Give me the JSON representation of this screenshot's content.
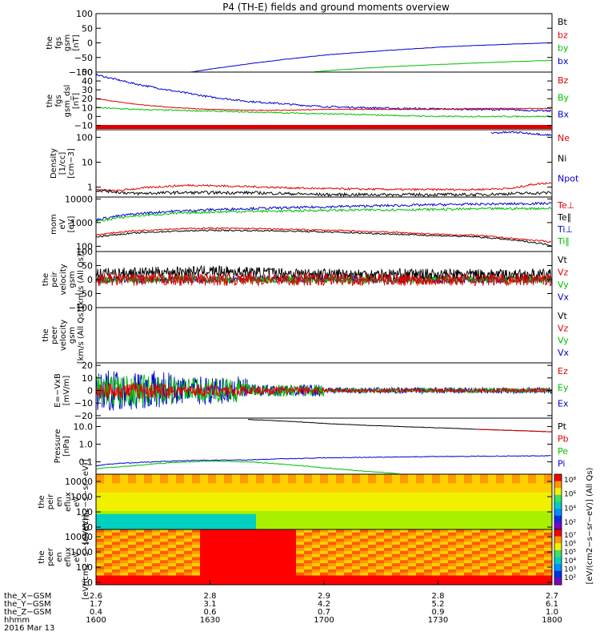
{
  "title": "P4 (TH-E) fields and ground moments overview",
  "colors": {
    "black": "#000000",
    "red": "#e00000",
    "green": "#00c000",
    "blue": "#0000d0",
    "white": "#ffffff"
  },
  "chart_data": [
    {
      "id": "p1",
      "type": "line",
      "ylabel": [
        "the",
        "fgs",
        "gsm",
        "[nT]"
      ],
      "yscale": "linear",
      "ylim": [
        -100,
        100
      ],
      "ticks": [
        {
          "v": 100,
          "t": "100"
        },
        {
          "v": 50,
          "t": "50"
        },
        {
          "v": 0,
          "t": "0"
        },
        {
          "v": -50,
          "t": "−50"
        },
        {
          "v": -100,
          "t": "−100"
        }
      ],
      "legend": [
        {
          "name": "Bt",
          "color": "black"
        },
        {
          "name": "bz",
          "color": "red"
        },
        {
          "name": "by",
          "color": "green"
        },
        {
          "name": "bx",
          "color": "blue"
        }
      ],
      "series": [
        {
          "name": "bx",
          "color": "blue",
          "x": [
            1625,
            1630,
            1640,
            1650,
            1700,
            1710,
            1720,
            1730,
            1740,
            1750,
            1800
          ],
          "y": [
            -100,
            -90,
            -72,
            -56,
            -42,
            -32,
            -23,
            -15,
            -9,
            -4,
            0
          ],
          "noise": 0.6
        },
        {
          "name": "by",
          "color": "green",
          "x": [
            1657,
            1700,
            1710,
            1720,
            1730,
            1740,
            1750,
            1800
          ],
          "y": [
            -100,
            -96,
            -87,
            -80,
            -74,
            -69,
            -64,
            -60
          ],
          "noise": 0.6
        },
        {
          "name": "bz",
          "color": "red",
          "x": [
            1757,
            1800
          ],
          "y": [
            100,
            100
          ],
          "noise": 0.5
        }
      ]
    },
    {
      "id": "p2",
      "type": "line",
      "ylabel": [
        "the",
        "fgs",
        "gsm_dsl",
        "[nT]"
      ],
      "yscale": "linear",
      "ylim": [
        -15,
        50
      ],
      "ticks": [
        {
          "v": 50,
          "t": "50"
        },
        {
          "v": 40,
          "t": "40"
        },
        {
          "v": 30,
          "t": "30"
        },
        {
          "v": 20,
          "t": "20"
        },
        {
          "v": 10,
          "t": "10"
        },
        {
          "v": 0,
          "t": "0"
        },
        {
          "v": -10,
          "t": "−10"
        }
      ],
      "legend": [
        {
          "name": "Bz",
          "color": "red"
        },
        {
          "name": "By",
          "color": "green"
        },
        {
          "name": "Bx",
          "color": "blue"
        }
      ],
      "series": [
        {
          "name": "Bx",
          "color": "blue",
          "x": [
            1600,
            1610,
            1620,
            1630,
            1640,
            1650,
            1700,
            1710,
            1720,
            1730,
            1740,
            1750,
            1800
          ],
          "y": [
            47,
            37,
            29,
            22,
            17,
            14,
            11,
            10,
            9,
            8.5,
            8,
            7.5,
            6
          ],
          "noise": 1.0
        },
        {
          "name": "Bz",
          "color": "red",
          "x": [
            1600,
            1610,
            1620,
            1630,
            1640,
            1650,
            1700,
            1710,
            1720,
            1730,
            1740,
            1750,
            1800
          ],
          "y": [
            20,
            14,
            10,
            8,
            7,
            7,
            8,
            8,
            8,
            8,
            9,
            9,
            9
          ],
          "noise": 0.4
        },
        {
          "name": "By",
          "color": "green",
          "x": [
            1600,
            1610,
            1620,
            1630,
            1640,
            1650,
            1700,
            1710,
            1720,
            1730,
            1740,
            1750,
            1800
          ],
          "y": [
            10,
            8,
            7,
            6,
            5,
            4,
            3,
            2,
            1,
            0,
            0,
            0,
            0
          ],
          "noise": 0.7
        }
      ]
    },
    {
      "id": "p3",
      "type": "line",
      "ylabel": [
        "Density",
        "[1/cc]",
        "[cm−3]"
      ],
      "yscale": "log",
      "ylim": [
        0.4,
        200
      ],
      "ticks": [
        {
          "v": 100,
          "t": "100"
        },
        {
          "v": 10,
          "t": "10"
        },
        {
          "v": 1,
          "t": "1"
        }
      ],
      "legend": [
        {
          "name": "Ne",
          "color": "red"
        },
        {
          "name": "Ni",
          "color": "black"
        },
        {
          "name": "Npot",
          "color": "blue"
        }
      ],
      "series": [
        {
          "name": "Ne",
          "color": "red",
          "x": [
            1600,
            1605,
            1615,
            1625,
            1635,
            1645,
            1655,
            1705,
            1720,
            1740,
            1750,
            1755,
            1800
          ],
          "y": [
            0.8,
            0.7,
            1.0,
            1.2,
            1.1,
            1.0,
            0.9,
            0.85,
            0.8,
            0.8,
            0.9,
            1.3,
            1.5
          ],
          "noise": 0.04
        },
        {
          "name": "Ni",
          "color": "black",
          "x": [
            1600,
            1610,
            1620,
            1630,
            1640,
            1650,
            1700,
            1720,
            1740,
            1750,
            1800
          ],
          "y": [
            0.75,
            0.55,
            0.6,
            0.6,
            0.6,
            0.55,
            0.5,
            0.5,
            0.5,
            0.55,
            0.6
          ],
          "noise": 0.06
        },
        {
          "name": "Npot",
          "color": "blue",
          "x": [
            1744,
            1750,
            1755,
            1760,
            1800
          ],
          "y": [
            150,
            160,
            140,
            120,
            110
          ],
          "noise": 0.04
        }
      ]
    },
    {
      "id": "p4",
      "type": "line",
      "ylabel": [
        "mom",
        "eV",
        "[eV]"
      ],
      "yscale": "log",
      "ylim": [
        60,
        12000
      ],
      "ticks": [
        {
          "v": 10000,
          "t": "10000"
        },
        {
          "v": 1000,
          "t": "1000"
        },
        {
          "v": 100,
          "t": "100"
        }
      ],
      "legend": [
        {
          "name": "Te⊥",
          "color": "red"
        },
        {
          "name": "Te∥",
          "color": "black"
        },
        {
          "name": "Ti⊥",
          "color": "blue"
        },
        {
          "name": "Ti∥",
          "color": "green"
        }
      ],
      "series": [
        {
          "name": "Ti⊥",
          "color": "blue",
          "x": [
            1600,
            1610,
            1620,
            1630,
            1640,
            1650,
            1700,
            1710,
            1720,
            1730,
            1740,
            1750,
            1800
          ],
          "y": [
            1300,
            2300,
            3000,
            3500,
            3900,
            4200,
            4600,
            5000,
            5300,
            5700,
            6000,
            6200,
            6500
          ],
          "noise": 0.05
        },
        {
          "name": "Ti∥",
          "color": "green",
          "x": [
            1600,
            1610,
            1620,
            1630,
            1640,
            1650,
            1700,
            1710,
            1720,
            1730,
            1740,
            1750,
            1800
          ],
          "y": [
            1100,
            1900,
            2400,
            2800,
            3000,
            3100,
            3300,
            3400,
            3500,
            3600,
            3800,
            3900,
            4000
          ],
          "noise": 0.05
        },
        {
          "name": "Te⊥",
          "color": "red",
          "x": [
            1600,
            1610,
            1620,
            1630,
            1640,
            1650,
            1700,
            1710,
            1720,
            1730,
            1740,
            1750,
            1800
          ],
          "y": [
            300,
            450,
            540,
            580,
            560,
            520,
            480,
            430,
            380,
            320,
            290,
            210,
            150
          ],
          "noise": 0.03
        },
        {
          "name": "Te∥",
          "color": "black",
          "x": [
            1600,
            1610,
            1620,
            1630,
            1640,
            1650,
            1700,
            1710,
            1720,
            1730,
            1740,
            1750,
            1800
          ],
          "y": [
            250,
            360,
            430,
            470,
            460,
            440,
            400,
            360,
            320,
            280,
            250,
            180,
            110
          ],
          "noise": 0.03
        }
      ]
    },
    {
      "id": "p5",
      "type": "line",
      "ylabel": [
        "the",
        "peir",
        "velocity",
        "gsm",
        "[km/s (All Qs)]"
      ],
      "yscale": "linear",
      "ylim": [
        -100,
        100
      ],
      "ticks": [
        {
          "v": 100,
          "t": "100"
        },
        {
          "v": 50,
          "t": "50"
        },
        {
          "v": 0,
          "t": "0"
        },
        {
          "v": -50,
          "t": "−50"
        },
        {
          "v": -100,
          "t": "−100"
        }
      ],
      "legend": [
        {
          "name": "Vt",
          "color": "black"
        },
        {
          "name": "Vz",
          "color": "red"
        },
        {
          "name": "Vy",
          "color": "green"
        },
        {
          "name": "Vx",
          "color": "blue"
        }
      ],
      "series": [
        {
          "name": "Vx",
          "color": "blue",
          "x": [
            1600,
            1800
          ],
          "y": [
            0,
            0
          ],
          "noise": 8,
          "dense": true
        },
        {
          "name": "Vy",
          "color": "green",
          "x": [
            1600,
            1800
          ],
          "y": [
            0,
            0
          ],
          "noise": 9,
          "dense": true
        },
        {
          "name": "Vt",
          "color": "black",
          "x": [
            1600,
            1630,
            1700,
            1800
          ],
          "y": [
            22,
            30,
            20,
            18
          ],
          "noise": 12,
          "dense": true
        },
        {
          "name": "Vz",
          "color": "red",
          "x": [
            1600,
            1800
          ],
          "y": [
            0,
            0
          ],
          "noise": 14,
          "dense": true
        }
      ]
    },
    {
      "id": "p6",
      "type": "line",
      "ylabel": [
        "the",
        "peer",
        "velocity",
        "gsm",
        "[km/s (All Qs)]"
      ],
      "yscale": "linear",
      "ylim": [
        -100,
        100
      ],
      "ticks": [],
      "legend": [
        {
          "name": "Vt",
          "color": "black"
        },
        {
          "name": "Vz",
          "color": "red"
        },
        {
          "name": "Vy",
          "color": "green"
        },
        {
          "name": "Vx",
          "color": "blue"
        }
      ],
      "series": []
    },
    {
      "id": "p7",
      "type": "line",
      "ylabel": [
        "E=−VxB",
        "[mV/m]"
      ],
      "yscale": "linear",
      "ylim": [
        -22,
        22
      ],
      "ticks": [
        {
          "v": 20,
          "t": "20"
        },
        {
          "v": 10,
          "t": "10"
        },
        {
          "v": 0,
          "t": "0"
        },
        {
          "v": -10,
          "t": "−10"
        },
        {
          "v": -20,
          "t": "−20"
        }
      ],
      "legend": [
        {
          "name": "Ez",
          "color": "red"
        },
        {
          "name": "Ey",
          "color": "green"
        },
        {
          "name": "Ex",
          "color": "blue"
        }
      ],
      "series": [
        {
          "name": "Ex",
          "color": "blue",
          "x": [
            1600,
            1620,
            1640,
            1700,
            1800
          ],
          "y": [
            0,
            0,
            0,
            0,
            0
          ],
          "noise": [
            10,
            7,
            3,
            1.5,
            1
          ],
          "dense": true
        },
        {
          "name": "Ey",
          "color": "green",
          "x": [
            1600,
            1620,
            1640,
            1700,
            1800
          ],
          "y": [
            0,
            0,
            0,
            0,
            0
          ],
          "noise": [
            8,
            6,
            3,
            1.2,
            0.8
          ],
          "dense": true
        },
        {
          "name": "Ez",
          "color": "red",
          "x": [
            1600,
            1620,
            1640,
            1700,
            1800
          ],
          "y": [
            0,
            0,
            0,
            0,
            0
          ],
          "noise": [
            4,
            3,
            2,
            1,
            0.7
          ],
          "dense": true
        }
      ]
    },
    {
      "id": "p8",
      "type": "line",
      "ylabel": [
        "Pressure",
        "[nPa]"
      ],
      "yscale": "log",
      "ylim": [
        0.02,
        30
      ],
      "ticks": [
        {
          "v": 10,
          "t": "10.0"
        },
        {
          "v": 1,
          "t": "1.0"
        },
        {
          "v": 0.1,
          "t": "0.1"
        }
      ],
      "legend": [
        {
          "name": "Pt",
          "color": "black"
        },
        {
          "name": "Pb",
          "color": "red"
        },
        {
          "name": "Pe",
          "color": "green"
        },
        {
          "name": "Pi",
          "color": "blue"
        }
      ],
      "series": [
        {
          "name": "Pt",
          "color": "black",
          "x": [
            1640,
            1650,
            1700,
            1710,
            1720,
            1730,
            1740,
            1750,
            1800
          ],
          "y": [
            25,
            20,
            15,
            12,
            10,
            8.5,
            7,
            6,
            5
          ],
          "noise": 0.01
        },
        {
          "name": "Pb",
          "color": "red",
          "x": [
            1740,
            1750,
            1800
          ],
          "y": [
            7,
            6,
            5
          ],
          "noise": 0.01
        },
        {
          "name": "Pi",
          "color": "blue",
          "x": [
            1600,
            1605,
            1615,
            1625,
            1640,
            1700,
            1730,
            1800
          ],
          "y": [
            0.06,
            0.08,
            0.1,
            0.12,
            0.13,
            0.17,
            0.2,
            0.22
          ],
          "noise": 0.02
        },
        {
          "name": "Pe",
          "color": "green",
          "x": [
            1600,
            1610,
            1620,
            1630,
            1640,
            1650,
            1700,
            1710,
            1720
          ],
          "y": [
            0.04,
            0.06,
            0.09,
            0.11,
            0.1,
            0.07,
            0.045,
            0.03,
            0.021
          ],
          "noise": 0.02
        }
      ]
    },
    {
      "id": "p9",
      "type": "heatmap",
      "ylabel": [
        "the",
        "peir",
        "en",
        "eflux",
        "eV",
        "[eV/(cm2−s−sr−eV)]"
      ],
      "yscale": "log",
      "ylim": [
        7,
        30000
      ],
      "ticks": [
        {
          "v": 10000,
          "t": "10000"
        },
        {
          "v": 1000,
          "t": "1000"
        },
        {
          "v": 100,
          "t": "100"
        },
        {
          "v": 10,
          "t": "10"
        }
      ],
      "colorbar": {
        "ticks": [
          "10⁸",
          "10⁶",
          "10⁴",
          "10²"
        ],
        "label": "[eV/(cm2−s−sr−eV)] (All Qs)"
      }
    },
    {
      "id": "p10",
      "type": "heatmap",
      "ylabel": [
        "the",
        "peer",
        "en",
        "eflux",
        "eV",
        "[eV/(cm2−s−sr−eV)]"
      ],
      "yscale": "log",
      "ylim": [
        7,
        30000
      ],
      "ticks": [
        {
          "v": 10000,
          "t": "10000"
        },
        {
          "v": 1000,
          "t": "1000"
        },
        {
          "v": 100,
          "t": "100"
        },
        {
          "v": 10,
          "t": "10"
        }
      ],
      "colorbar": {
        "ticks": [
          "10⁷",
          "10⁶",
          "10⁵",
          "10⁴",
          "10³",
          "10²"
        ],
        "label": ""
      }
    }
  ],
  "xaxis": {
    "range": [
      1600,
      1800
    ],
    "ticks": [
      1600,
      1630,
      1700,
      1730,
      1800
    ],
    "rows": [
      {
        "label": "the_X−GSM",
        "values": [
          "2.6",
          "2.8",
          "2.9",
          "2.8",
          "2.7"
        ]
      },
      {
        "label": "the_Y−GSM",
        "values": [
          "1.7",
          "3.1",
          "4.2",
          "5.2",
          "6.1"
        ]
      },
      {
        "label": "the_Z−GSM",
        "values": [
          "0.4",
          "0.6",
          "0.7",
          "0.9",
          "1.0"
        ]
      },
      {
        "label": "hhmm",
        "values": [
          "1600",
          "1630",
          "1700",
          "1730",
          "1800"
        ]
      }
    ],
    "date": "2016 Mar 13"
  }
}
